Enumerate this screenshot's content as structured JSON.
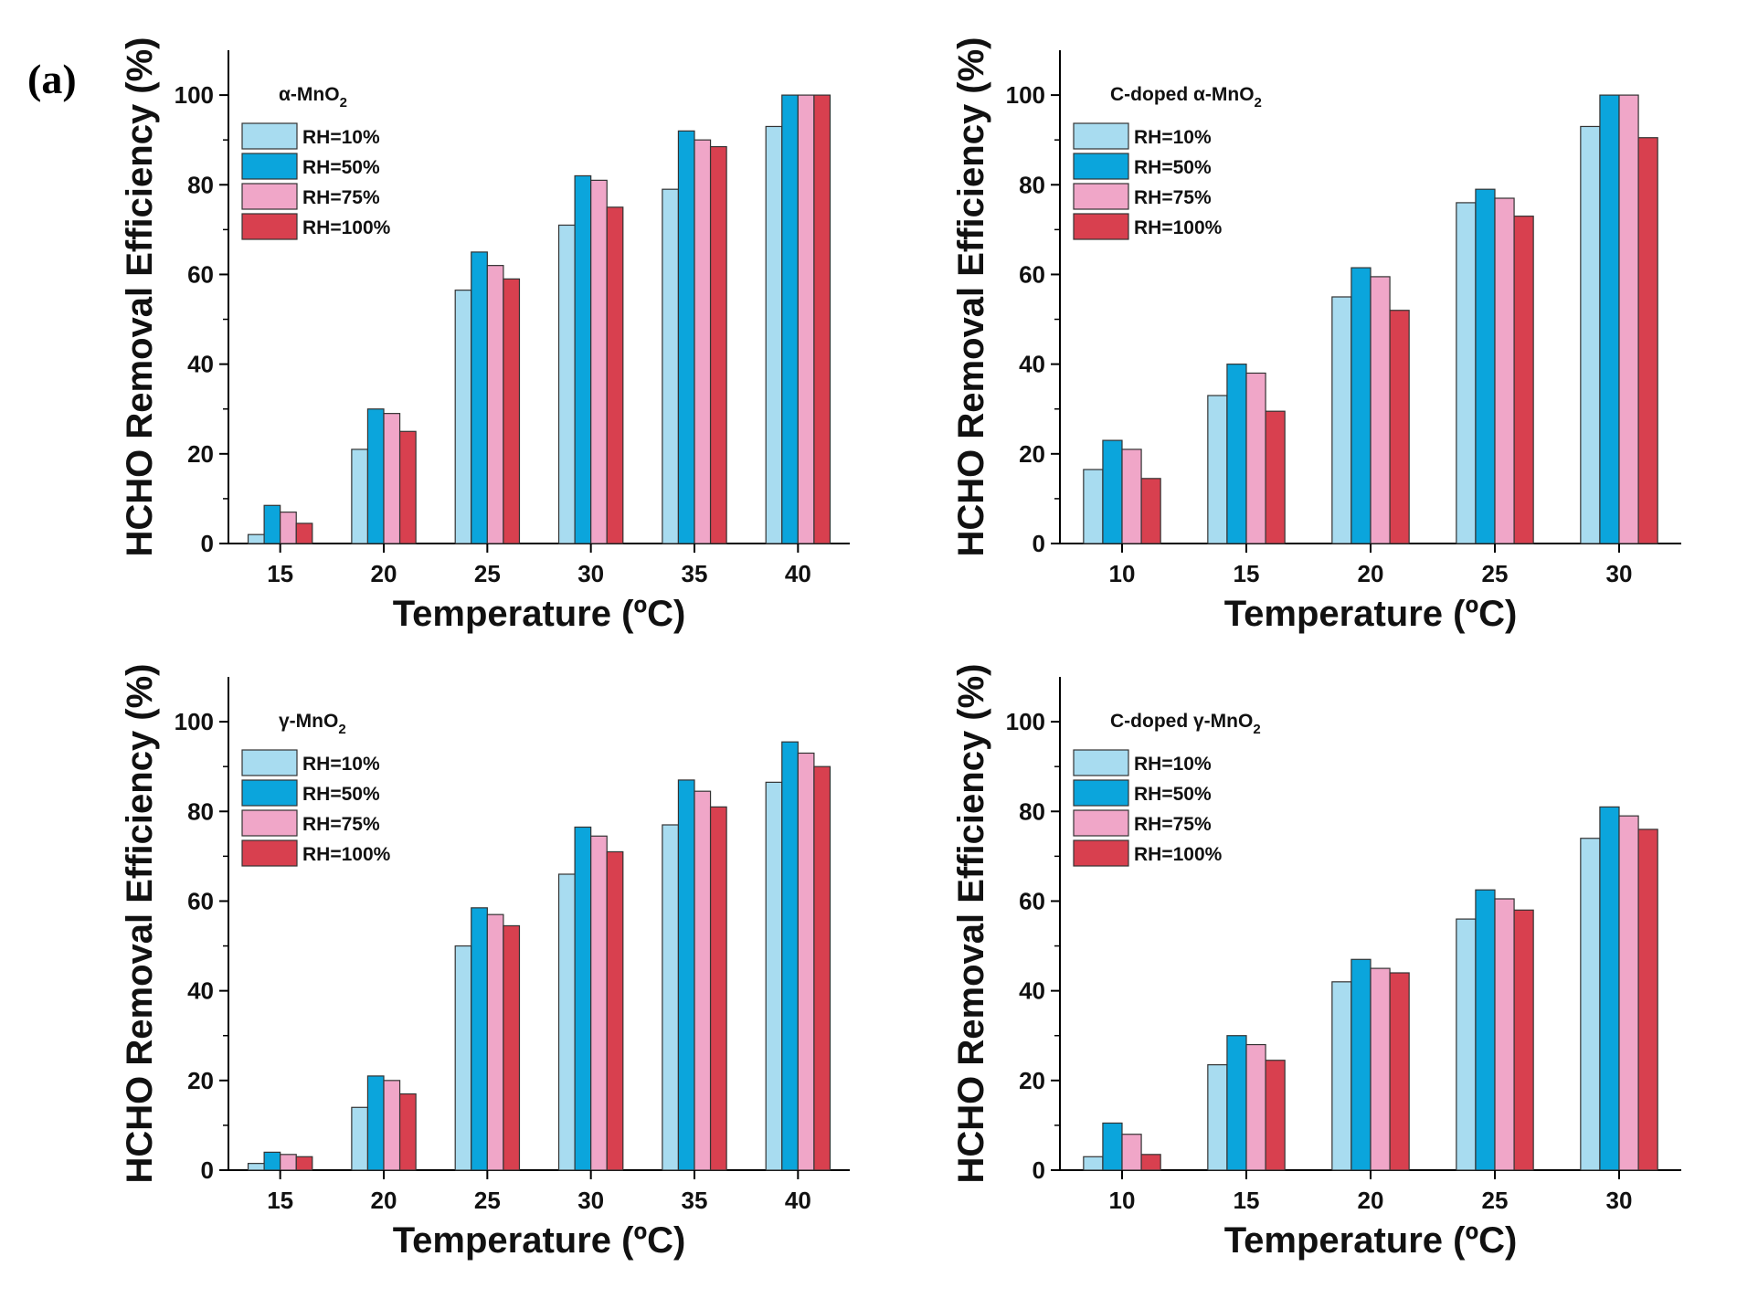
{
  "figure": {
    "panel_label": "(a)",
    "colors": {
      "RH=10%": "#a8dcf0",
      "RH=50%": "#0ba5dc",
      "RH=75%": "#f0a6c8",
      "RH=100%": "#d8404f"
    }
  },
  "chart_data": [
    {
      "type": "bar",
      "title": "α-MnO",
      "title_subscript": "2",
      "xlabel": "Temperature (ºC)",
      "ylabel": "HCHO Removal Efficiency (%)",
      "ylim": [
        0,
        110
      ],
      "yticks": [
        0,
        20,
        40,
        60,
        80,
        100
      ],
      "categories": [
        "15",
        "20",
        "25",
        "30",
        "35",
        "40"
      ],
      "legend_position": "top-left",
      "series": [
        {
          "name": "RH=10%",
          "values": [
            2,
            21,
            56.5,
            71,
            79,
            93
          ]
        },
        {
          "name": "RH=50%",
          "values": [
            8.5,
            30,
            65,
            82,
            92,
            100
          ]
        },
        {
          "name": "RH=75%",
          "values": [
            7,
            29,
            62,
            81,
            90,
            100
          ]
        },
        {
          "name": "RH=100%",
          "values": [
            4.5,
            25,
            59,
            75,
            88.5,
            100
          ]
        }
      ]
    },
    {
      "type": "bar",
      "title": "C-doped α-MnO",
      "title_subscript": "2",
      "xlabel": "Temperature (ºC)",
      "ylabel": "HCHO Removal Efficiency (%)",
      "ylim": [
        0,
        110
      ],
      "yticks": [
        0,
        20,
        40,
        60,
        80,
        100
      ],
      "categories": [
        "10",
        "15",
        "20",
        "25",
        "30"
      ],
      "legend_position": "top-left",
      "series": [
        {
          "name": "RH=10%",
          "values": [
            16.5,
            33,
            55,
            76,
            93
          ]
        },
        {
          "name": "RH=50%",
          "values": [
            23,
            40,
            61.5,
            79,
            100
          ]
        },
        {
          "name": "RH=75%",
          "values": [
            21,
            38,
            59.5,
            77,
            100
          ]
        },
        {
          "name": "RH=100%",
          "values": [
            14.5,
            29.5,
            52,
            73,
            90.5
          ]
        }
      ]
    },
    {
      "type": "bar",
      "title": "γ-MnO",
      "title_subscript": "2",
      "xlabel": "Temperature (ºC)",
      "ylabel": "HCHO Removal Efficiency (%)",
      "ylim": [
        0,
        110
      ],
      "yticks": [
        0,
        20,
        40,
        60,
        80,
        100
      ],
      "categories": [
        "15",
        "20",
        "25",
        "30",
        "35",
        "40"
      ],
      "legend_position": "top-left",
      "series": [
        {
          "name": "RH=10%",
          "values": [
            1.5,
            14,
            50,
            66,
            77,
            86.5
          ]
        },
        {
          "name": "RH=50%",
          "values": [
            4,
            21,
            58.5,
            76.5,
            87,
            95.5
          ]
        },
        {
          "name": "RH=75%",
          "values": [
            3.5,
            20,
            57,
            74.5,
            84.5,
            93
          ]
        },
        {
          "name": "RH=100%",
          "values": [
            3,
            17,
            54.5,
            71,
            81,
            90
          ]
        }
      ]
    },
    {
      "type": "bar",
      "title": "C-doped γ-MnO",
      "title_subscript": "2",
      "xlabel": "Temperature (ºC)",
      "ylabel": "HCHO Removal Efficiency (%)",
      "ylim": [
        0,
        110
      ],
      "yticks": [
        0,
        20,
        40,
        60,
        80,
        100
      ],
      "categories": [
        "10",
        "15",
        "20",
        "25",
        "30"
      ],
      "legend_position": "top-left",
      "series": [
        {
          "name": "RH=10%",
          "values": [
            3,
            23.5,
            42,
            56,
            74
          ]
        },
        {
          "name": "RH=50%",
          "values": [
            10.5,
            30,
            47,
            62.5,
            81
          ]
        },
        {
          "name": "RH=75%",
          "values": [
            8,
            28,
            45,
            60.5,
            79
          ]
        },
        {
          "name": "RH=100%",
          "values": [
            3.5,
            24.5,
            44,
            58,
            76
          ]
        }
      ]
    }
  ]
}
